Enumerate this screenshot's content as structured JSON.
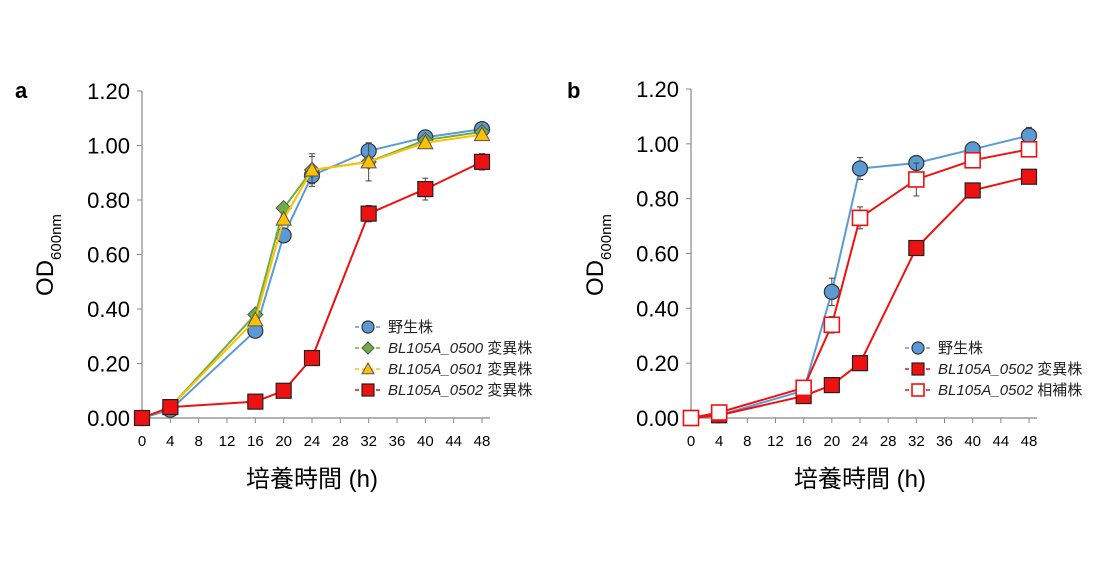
{
  "chart_data": [
    {
      "panel": "a",
      "type": "line",
      "xlabel": "培養時間 (h)",
      "ylabel_main": "OD",
      "ylabel_sub": "600nm",
      "xticks": [
        "0",
        "4",
        "8",
        "12",
        "16",
        "20",
        "24",
        "28",
        "32",
        "36",
        "40",
        "44",
        "48"
      ],
      "yticks": [
        "0.00",
        "0.20",
        "0.40",
        "0.60",
        "0.80",
        "1.00",
        "1.20"
      ],
      "xlim": [
        0,
        48
      ],
      "ylim": [
        0,
        1.2
      ],
      "grid": false,
      "legend_position": "lower-right",
      "series": [
        {
          "name": "野生株",
          "id": "",
          "suffix": "",
          "color": "#5b9bd5",
          "marker": "circle",
          "filled": true,
          "line_color": "#5b9bd5",
          "x": [
            0,
            4,
            16,
            20,
            24,
            32,
            40,
            48
          ],
          "y": [
            0.0,
            0.03,
            0.32,
            0.67,
            0.89,
            0.98,
            1.03,
            1.06
          ],
          "err": [
            0,
            0,
            0,
            0.02,
            0.03,
            0,
            0,
            0
          ]
        },
        {
          "name": "",
          "id": "BL105A_0500",
          "suffix": " 変異株",
          "color": "#70ad47",
          "marker": "diamond",
          "filled": true,
          "line_color": "#70ad47",
          "x": [
            0,
            4,
            16,
            20,
            24,
            32,
            40,
            48
          ],
          "y": [
            0.0,
            0.04,
            0.38,
            0.77,
            0.91,
            0.94,
            1.02,
            1.05
          ],
          "err": [
            0,
            0,
            0,
            0,
            0.05,
            0,
            0,
            0
          ]
        },
        {
          "name": "",
          "id": "BL105A_0501",
          "suffix": " 変異株",
          "color": "#ffc000",
          "marker": "triangle",
          "filled": true,
          "line_color": "#ffc000",
          "x": [
            0,
            4,
            16,
            20,
            24,
            32,
            40,
            48
          ],
          "y": [
            0.0,
            0.04,
            0.36,
            0.73,
            0.91,
            0.94,
            1.01,
            1.04
          ],
          "err": [
            0,
            0,
            0,
            0,
            0.06,
            0.07,
            0,
            0
          ]
        },
        {
          "name": "",
          "id": "BL105A_0502",
          "suffix": " 変異株",
          "color": "#ee1111",
          "marker": "square",
          "filled": true,
          "line_color": "#ee1111",
          "x": [
            0,
            4,
            16,
            20,
            24,
            32,
            40,
            48
          ],
          "y": [
            0.0,
            0.04,
            0.06,
            0.1,
            0.22,
            0.75,
            0.84,
            0.94
          ],
          "err": [
            0,
            0,
            0,
            0,
            0,
            0.03,
            0.04,
            0.03
          ]
        }
      ]
    },
    {
      "panel": "b",
      "type": "line",
      "xlabel": "培養時間 (h)",
      "ylabel_main": "OD",
      "ylabel_sub": "600nm",
      "xticks": [
        "0",
        "4",
        "8",
        "12",
        "16",
        "20",
        "24",
        "28",
        "32",
        "36",
        "40",
        "44",
        "48"
      ],
      "yticks": [
        "0.00",
        "0.20",
        "0.40",
        "0.60",
        "0.80",
        "1.00",
        "1.20"
      ],
      "xlim": [
        0,
        48
      ],
      "ylim": [
        0,
        1.2
      ],
      "grid": false,
      "legend_position": "lower-right",
      "series": [
        {
          "name": "野生株",
          "id": "",
          "suffix": "",
          "color": "#5b9bd5",
          "marker": "circle",
          "filled": true,
          "line_color": "#5b9bd5",
          "x": [
            0,
            4,
            16,
            20,
            24,
            32,
            40,
            48
          ],
          "y": [
            0.0,
            0.01,
            0.1,
            0.46,
            0.91,
            0.93,
            0.98,
            1.03
          ],
          "err": [
            0,
            0,
            0,
            0.05,
            0.04,
            0,
            0.02,
            0.03
          ]
        },
        {
          "name": "",
          "id": "BL105A_0502",
          "suffix": " 変異株",
          "color": "#ee1111",
          "marker": "square",
          "filled": true,
          "line_color": "#ee1111",
          "x": [
            0,
            4,
            16,
            20,
            24,
            32,
            40,
            48
          ],
          "y": [
            0.0,
            0.01,
            0.08,
            0.12,
            0.2,
            0.62,
            0.83,
            0.88
          ],
          "err": [
            0,
            0,
            0,
            0,
            0,
            0,
            0.02,
            0
          ]
        },
        {
          "name": "",
          "id": "BL105A_0502",
          "suffix": " 相補株",
          "color": "#ee1111",
          "marker": "square",
          "filled": false,
          "line_color": "#ee1111",
          "x": [
            0,
            4,
            16,
            20,
            24,
            32,
            40,
            48
          ],
          "y": [
            0.0,
            0.02,
            0.11,
            0.34,
            0.73,
            0.87,
            0.94,
            0.98
          ],
          "err": [
            0,
            0,
            0,
            0.03,
            0.04,
            0.06,
            0.02,
            0
          ]
        }
      ]
    }
  ]
}
